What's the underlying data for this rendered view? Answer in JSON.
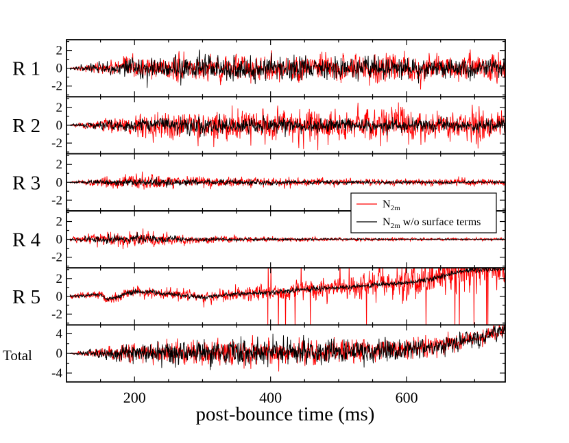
{
  "chart_data": {
    "type": "line",
    "xlabel": "post-bounce time (ms)",
    "xlim": [
      100,
      745
    ],
    "xticks": [
      200,
      400,
      600
    ],
    "xticks_minor": [
      150,
      250,
      300,
      350,
      450,
      500,
      550,
      650,
      700
    ],
    "legend": {
      "placement": "right, between panels R 3 and R 4",
      "entries": [
        {
          "series": "n2m",
          "name": "N",
          "sub": "2m",
          "suffix": "",
          "color": "#ff0000"
        },
        {
          "series": "n2m_no_surface",
          "name": "N",
          "sub": "2m",
          "suffix": " w/o surface terms",
          "color": "#000000"
        }
      ]
    },
    "series_styles": [
      {
        "key": "n2m",
        "color": "#ff0000"
      },
      {
        "key": "n2m_no_surface",
        "color": "#000000"
      }
    ],
    "panels": [
      {
        "id": "R1",
        "label": "R 1",
        "ylim": [
          -3.2,
          3.2
        ],
        "yticks": [
          -2,
          0,
          2
        ],
        "ytick_labels": [
          "-2",
          "0",
          "2"
        ],
        "envelope": {
          "n2m": [
            [
              105,
              0.05
            ],
            [
              150,
              0.5
            ],
            [
              200,
              0.85
            ],
            [
              250,
              1.0
            ],
            [
              300,
              1.05
            ],
            [
              400,
              1.1
            ],
            [
              500,
              1.1
            ],
            [
              600,
              1.12
            ],
            [
              745,
              1.15
            ]
          ],
          "n2m_no_surface": [
            [
              105,
              0.05
            ],
            [
              150,
              0.45
            ],
            [
              200,
              0.8
            ],
            [
              250,
              0.95
            ],
            [
              300,
              1.0
            ],
            [
              400,
              0.95
            ],
            [
              500,
              0.85
            ],
            [
              600,
              0.8
            ],
            [
              745,
              0.75
            ]
          ]
        },
        "trend": [
          [
            100,
            0
          ],
          [
            745,
            0
          ]
        ]
      },
      {
        "id": "R2",
        "label": "R 2",
        "ylim": [
          -3.2,
          3.2
        ],
        "yticks": [
          -2,
          0,
          2
        ],
        "ytick_labels": [
          "-2",
          "0",
          "2"
        ],
        "envelope": {
          "n2m": [
            [
              105,
              0.05
            ],
            [
              150,
              0.45
            ],
            [
              200,
              0.85
            ],
            [
              250,
              1.2
            ],
            [
              300,
              1.3
            ],
            [
              400,
              1.3
            ],
            [
              500,
              1.35
            ],
            [
              600,
              1.4
            ],
            [
              745,
              1.35
            ]
          ],
          "n2m_no_surface": [
            [
              105,
              0.05
            ],
            [
              150,
              0.35
            ],
            [
              200,
              0.55
            ],
            [
              250,
              0.65
            ],
            [
              300,
              0.7
            ],
            [
              400,
              0.6
            ],
            [
              500,
              0.55
            ],
            [
              600,
              0.55
            ],
            [
              745,
              0.5
            ]
          ]
        },
        "trend": [
          [
            100,
            0
          ],
          [
            745,
            0
          ]
        ]
      },
      {
        "id": "R3",
        "label": "R 3",
        "ylim": [
          -3.2,
          3.2
        ],
        "yticks": [
          -2,
          0,
          2
        ],
        "ytick_labels": [
          "-2",
          "0",
          "2"
        ],
        "envelope": {
          "n2m": [
            [
              105,
              0.05
            ],
            [
              150,
              0.4
            ],
            [
              200,
              0.65
            ],
            [
              250,
              0.5
            ],
            [
              300,
              0.45
            ],
            [
              400,
              0.35
            ],
            [
              500,
              0.3
            ],
            [
              600,
              0.28
            ],
            [
              745,
              0.3
            ]
          ],
          "n2m_no_surface": [
            [
              105,
              0.05
            ],
            [
              150,
              0.25
            ],
            [
              200,
              0.3
            ],
            [
              250,
              0.3
            ],
            [
              300,
              0.25
            ],
            [
              400,
              0.2
            ],
            [
              500,
              0.15
            ],
            [
              600,
              0.12
            ],
            [
              745,
              0.12
            ]
          ]
        },
        "trend": [
          [
            100,
            0
          ],
          [
            745,
            0
          ]
        ]
      },
      {
        "id": "R4",
        "label": "R 4",
        "ylim": [
          -3.2,
          3.2
        ],
        "yticks": [
          -2,
          0,
          2
        ],
        "ytick_labels": [
          "-2",
          "0",
          "2"
        ],
        "envelope": {
          "n2m": [
            [
              105,
              0.15
            ],
            [
              150,
              0.55
            ],
            [
              200,
              0.7
            ],
            [
              250,
              0.45
            ],
            [
              300,
              0.3
            ],
            [
              400,
              0.22
            ],
            [
              500,
              0.15
            ],
            [
              600,
              0.12
            ],
            [
              745,
              0.1
            ]
          ],
          "n2m_no_surface": [
            [
              105,
              0.1
            ],
            [
              150,
              0.3
            ],
            [
              200,
              0.35
            ],
            [
              250,
              0.25
            ],
            [
              300,
              0.15
            ],
            [
              400,
              0.1
            ],
            [
              500,
              0.08
            ],
            [
              600,
              0.06
            ],
            [
              745,
              0.06
            ]
          ]
        },
        "trend": [
          [
            100,
            0
          ],
          [
            745,
            0
          ]
        ]
      },
      {
        "id": "R5",
        "label": "R 5",
        "ylim": [
          -3.2,
          3.2
        ],
        "yticks": [
          -2,
          0,
          2
        ],
        "ytick_labels": [
          "-2",
          "0",
          "2"
        ],
        "envelope": {
          "n2m": [
            [
              105,
              0.2
            ],
            [
              200,
              0.45
            ],
            [
              300,
              0.5
            ],
            [
              400,
              0.65
            ],
            [
              500,
              0.9
            ],
            [
              600,
              1.3
            ],
            [
              700,
              1.6
            ],
            [
              745,
              1.7
            ]
          ],
          "n2m_no_surface": [
            [
              105,
              0.1
            ],
            [
              200,
              0.2
            ],
            [
              300,
              0.2
            ],
            [
              400,
              0.2
            ],
            [
              500,
              0.2
            ],
            [
              600,
              0.2
            ],
            [
              700,
              0.2
            ],
            [
              745,
              0.2
            ]
          ]
        },
        "trend": [
          [
            100,
            0.0
          ],
          [
            150,
            0.2
          ],
          [
            160,
            -0.4
          ],
          [
            200,
            0.6
          ],
          [
            250,
            0.3
          ],
          [
            300,
            -0.1
          ],
          [
            350,
            0.3
          ],
          [
            400,
            0.4
          ],
          [
            450,
            0.8
          ],
          [
            500,
            1.0
          ],
          [
            550,
            1.3
          ],
          [
            600,
            1.5
          ],
          [
            650,
            2.2
          ],
          [
            690,
            3.0
          ],
          [
            745,
            3.1
          ]
        ],
        "spikes": true
      },
      {
        "id": "Total",
        "label": "Total",
        "small_label": true,
        "ylim": [
          -5.8,
          5.8
        ],
        "yticks": [
          -4,
          0,
          4
        ],
        "ytick_labels": [
          "-4",
          "0",
          "4"
        ],
        "envelope": {
          "n2m": [
            [
              105,
              0.05
            ],
            [
              150,
              0.8
            ],
            [
              200,
              1.3
            ],
            [
              300,
              1.9
            ],
            [
              400,
              2.0
            ],
            [
              500,
              1.8
            ],
            [
              600,
              1.5
            ],
            [
              700,
              1.2
            ],
            [
              745,
              1.0
            ]
          ],
          "n2m_no_surface": [
            [
              105,
              0.05
            ],
            [
              150,
              0.8
            ],
            [
              200,
              1.3
            ],
            [
              300,
              1.9
            ],
            [
              400,
              2.0
            ],
            [
              500,
              1.8
            ],
            [
              600,
              1.5
            ],
            [
              700,
              1.2
            ],
            [
              745,
              1.0
            ]
          ]
        },
        "trend": [
          [
            100,
            0
          ],
          [
            500,
            0.3
          ],
          [
            600,
            0.8
          ],
          [
            650,
            1.5
          ],
          [
            700,
            3.0
          ],
          [
            745,
            4.8
          ]
        ]
      }
    ]
  }
}
